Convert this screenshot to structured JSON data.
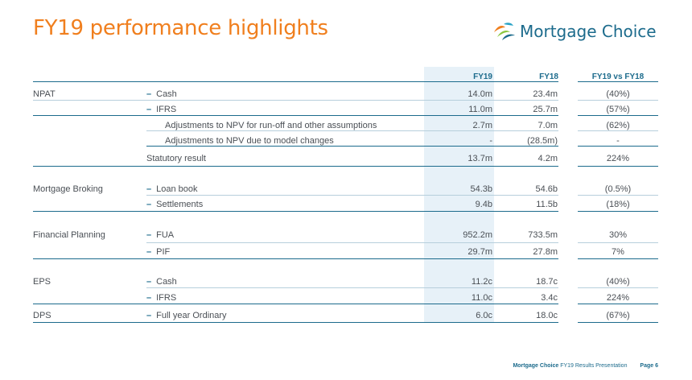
{
  "title": "FY19 performance highlights",
  "logo": {
    "text": "Mortgage Choice"
  },
  "columns": {
    "fy19": "FY19",
    "fy18": "FY18",
    "change": "FY19 vs FY18"
  },
  "rows": [
    {
      "section": "NPAT",
      "label": "Cash",
      "dash": true,
      "fy19": "14.0m",
      "fy18": "23.4m",
      "change": "(40%)"
    },
    {
      "section": "",
      "label": "IFRS",
      "dash": true,
      "fy19": "11.0m",
      "fy18": "25.7m",
      "change": "(57%)"
    },
    {
      "section": "",
      "label": "Adjustments to NPV for run-off and other assumptions",
      "dash": false,
      "fy19": "2.7m",
      "fy18": "7.0m",
      "change": "(62%)"
    },
    {
      "section": "",
      "label": "Adjustments to NPV due to model changes",
      "dash": false,
      "fy19": "-",
      "fy18": "(28.5m)",
      "change": "-"
    },
    {
      "section": "",
      "label": "Statutory result",
      "dash": false,
      "fy19": "13.7m",
      "fy18": "4.2m",
      "change": "224%"
    },
    {
      "section": "Mortgage Broking",
      "label": "Loan book",
      "dash": true,
      "fy19": "54.3b",
      "fy18": "54.6b",
      "change": "(0.5%)"
    },
    {
      "section": "",
      "label": "Settlements",
      "dash": true,
      "fy19": "9.4b",
      "fy18": "11.5b",
      "change": "(18%)"
    },
    {
      "section": "Financial Planning",
      "label": "FUA",
      "dash": true,
      "fy19": "952.2m",
      "fy18": "733.5m",
      "change": "30%"
    },
    {
      "section": "",
      "label": "PIF",
      "dash": true,
      "fy19": "29.7m",
      "fy18": "27.8m",
      "change": "7%"
    },
    {
      "section": "EPS",
      "label": "Cash",
      "dash": true,
      "fy19": "11.2c",
      "fy18": "18.7c",
      "change": "(40%)"
    },
    {
      "section": "",
      "label": "IFRS",
      "dash": true,
      "fy19": "11.0c",
      "fy18": "3.4c",
      "change": "224%"
    },
    {
      "section": "DPS",
      "label": "Full year Ordinary",
      "dash": true,
      "fy19": "6.0c",
      "fy18": "18.0c",
      "change": "(67%)"
    }
  ],
  "footer": {
    "brand": "Mortgage Choice",
    "text": "FY19 Results Presentation",
    "page": "Page 6"
  }
}
